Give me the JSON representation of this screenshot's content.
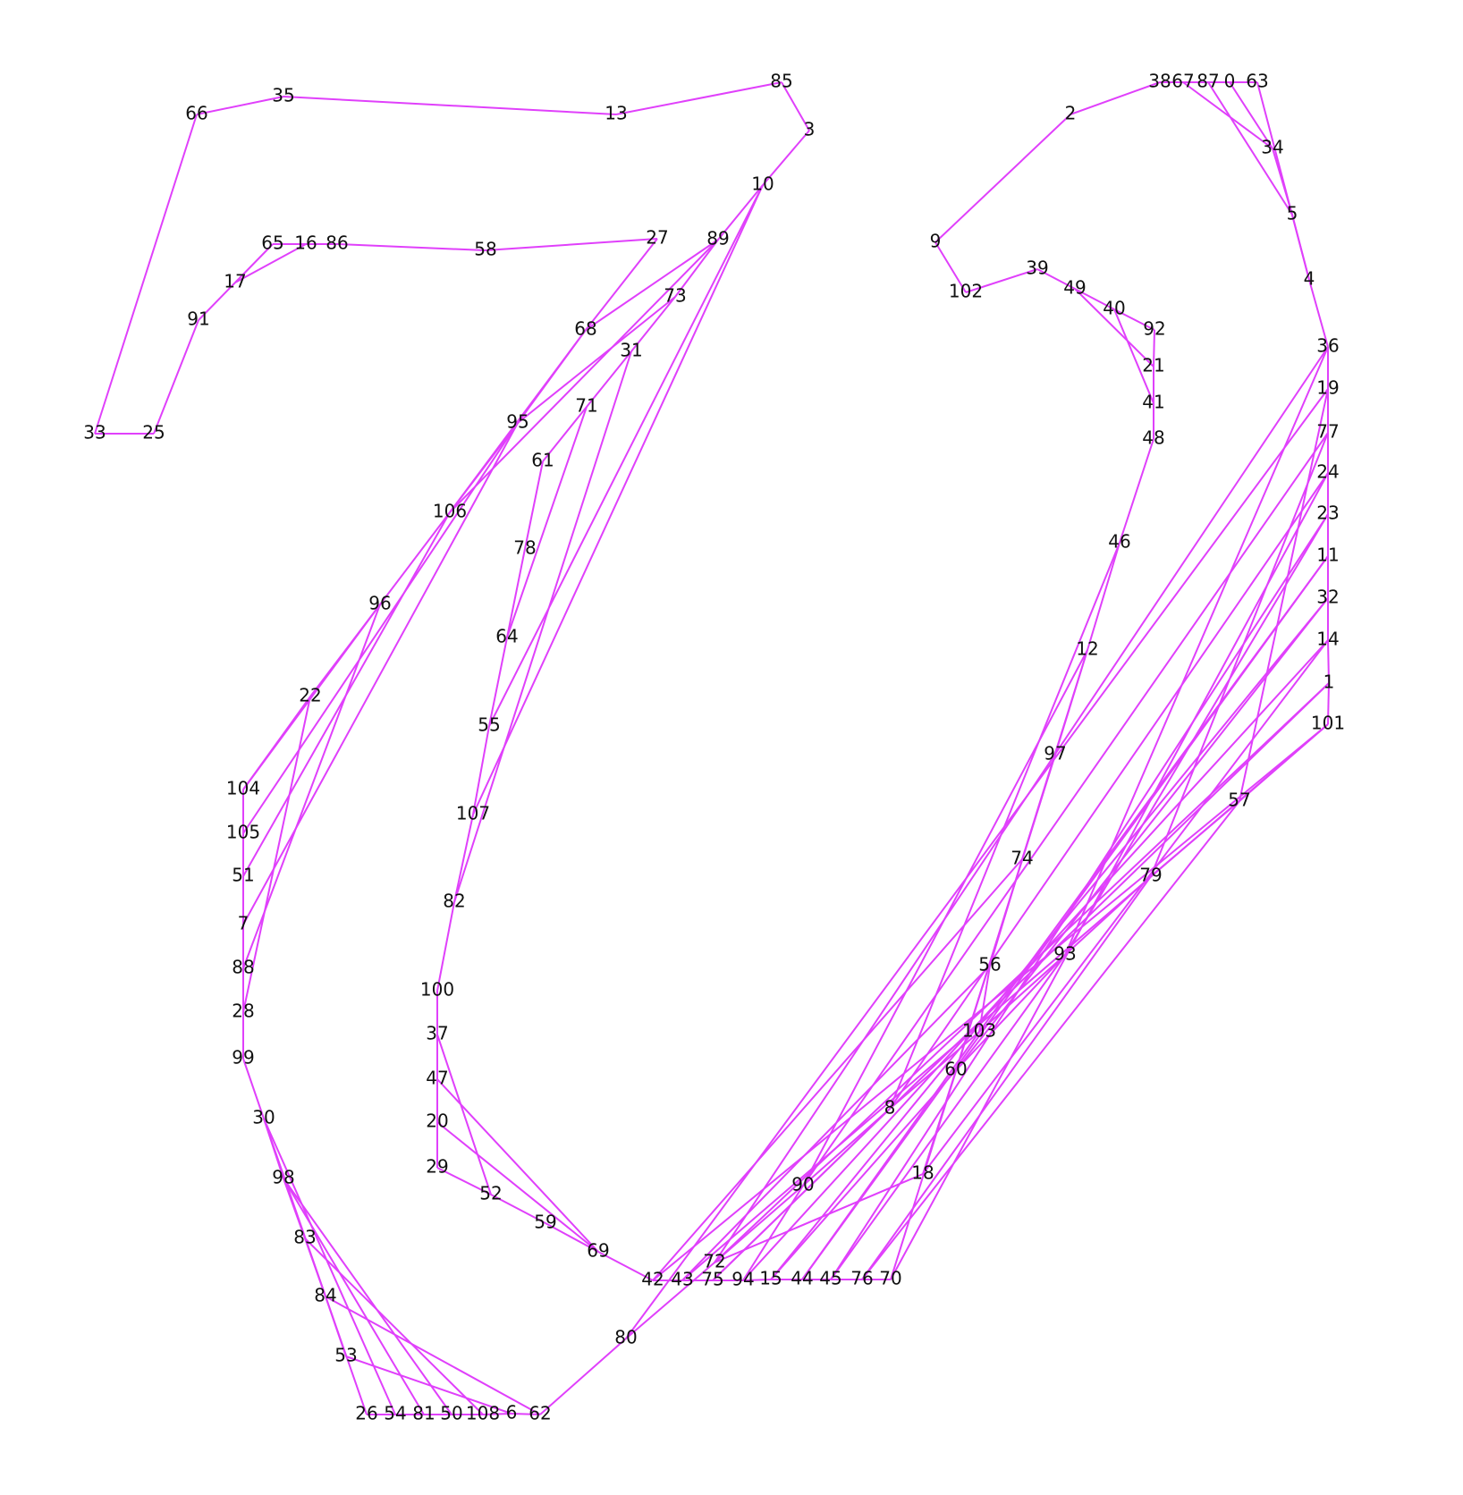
{
  "diagram": {
    "type": "graph",
    "edge_color": "#e040fb",
    "label_color": "#111111",
    "background": "#ffffff"
  },
  "nodes": [
    {
      "id": "0",
      "label": "0"
    },
    {
      "id": "1",
      "label": "1"
    },
    {
      "id": "2",
      "label": "2"
    },
    {
      "id": "3",
      "label": "3"
    },
    {
      "id": "4",
      "label": "4"
    },
    {
      "id": "5",
      "label": "5"
    },
    {
      "id": "6",
      "label": "6"
    },
    {
      "id": "7",
      "label": "7"
    },
    {
      "id": "8",
      "label": "8"
    },
    {
      "id": "9",
      "label": "9"
    },
    {
      "id": "10",
      "label": "10"
    },
    {
      "id": "11",
      "label": "11"
    },
    {
      "id": "12",
      "label": "12"
    },
    {
      "id": "13",
      "label": "13"
    },
    {
      "id": "14",
      "label": "14"
    },
    {
      "id": "15",
      "label": "15"
    },
    {
      "id": "16",
      "label": "16"
    },
    {
      "id": "17",
      "label": "17"
    },
    {
      "id": "18",
      "label": "18"
    },
    {
      "id": "19",
      "label": "19"
    },
    {
      "id": "20",
      "label": "20"
    },
    {
      "id": "21",
      "label": "21"
    },
    {
      "id": "22",
      "label": "22"
    },
    {
      "id": "23",
      "label": "23"
    },
    {
      "id": "24",
      "label": "24"
    },
    {
      "id": "25",
      "label": "25"
    },
    {
      "id": "26",
      "label": "26"
    },
    {
      "id": "27",
      "label": "27"
    },
    {
      "id": "28",
      "label": "28"
    },
    {
      "id": "29",
      "label": "29"
    },
    {
      "id": "30",
      "label": "30"
    },
    {
      "id": "31",
      "label": "31"
    },
    {
      "id": "32",
      "label": "32"
    },
    {
      "id": "33",
      "label": "33"
    },
    {
      "id": "34",
      "label": "34"
    },
    {
      "id": "35",
      "label": "35"
    },
    {
      "id": "36",
      "label": "36"
    },
    {
      "id": "37",
      "label": "37"
    },
    {
      "id": "38",
      "label": "38"
    },
    {
      "id": "39",
      "label": "39"
    },
    {
      "id": "40",
      "label": "40"
    },
    {
      "id": "41",
      "label": "41"
    },
    {
      "id": "42",
      "label": "42"
    },
    {
      "id": "43",
      "label": "43"
    },
    {
      "id": "44",
      "label": "44"
    },
    {
      "id": "45",
      "label": "45"
    },
    {
      "id": "46",
      "label": "46"
    },
    {
      "id": "47",
      "label": "47"
    },
    {
      "id": "48",
      "label": "48"
    },
    {
      "id": "49",
      "label": "49"
    },
    {
      "id": "50",
      "label": "50"
    },
    {
      "id": "51",
      "label": "51"
    },
    {
      "id": "52",
      "label": "52"
    },
    {
      "id": "53",
      "label": "53"
    },
    {
      "id": "54",
      "label": "54"
    },
    {
      "id": "55",
      "label": "55"
    },
    {
      "id": "56",
      "label": "56"
    },
    {
      "id": "57",
      "label": "57"
    },
    {
      "id": "58",
      "label": "58"
    },
    {
      "id": "59",
      "label": "59"
    },
    {
      "id": "60",
      "label": "60"
    },
    {
      "id": "61",
      "label": "61"
    },
    {
      "id": "62",
      "label": "62"
    },
    {
      "id": "63",
      "label": "63"
    },
    {
      "id": "64",
      "label": "64"
    },
    {
      "id": "65",
      "label": "65"
    },
    {
      "id": "66",
      "label": "66"
    },
    {
      "id": "67",
      "label": "67"
    },
    {
      "id": "68",
      "label": "68"
    },
    {
      "id": "69",
      "label": "69"
    },
    {
      "id": "70",
      "label": "70"
    },
    {
      "id": "71",
      "label": "71"
    },
    {
      "id": "72",
      "label": "72"
    },
    {
      "id": "73",
      "label": "73"
    },
    {
      "id": "74",
      "label": "74"
    },
    {
      "id": "75",
      "label": "75"
    },
    {
      "id": "76",
      "label": "76"
    },
    {
      "id": "77",
      "label": "77"
    },
    {
      "id": "78",
      "label": "78"
    },
    {
      "id": "79",
      "label": "79"
    },
    {
      "id": "80",
      "label": "80"
    },
    {
      "id": "81",
      "label": "81"
    },
    {
      "id": "82",
      "label": "82"
    },
    {
      "id": "83",
      "label": "83"
    },
    {
      "id": "84",
      "label": "84"
    },
    {
      "id": "85",
      "label": "85"
    },
    {
      "id": "86",
      "label": "86"
    },
    {
      "id": "87",
      "label": "87"
    },
    {
      "id": "88",
      "label": "88"
    },
    {
      "id": "89",
      "label": "89"
    },
    {
      "id": "90",
      "label": "90"
    },
    {
      "id": "91",
      "label": "91"
    },
    {
      "id": "92",
      "label": "92"
    },
    {
      "id": "93",
      "label": "93"
    },
    {
      "id": "94",
      "label": "94"
    },
    {
      "id": "95",
      "label": "95"
    },
    {
      "id": "96",
      "label": "96"
    },
    {
      "id": "97",
      "label": "97"
    },
    {
      "id": "98",
      "label": "98"
    },
    {
      "id": "99",
      "label": "99"
    },
    {
      "id": "100",
      "label": "100"
    },
    {
      "id": "101",
      "label": "101"
    },
    {
      "id": "102",
      "label": "102"
    },
    {
      "id": "103",
      "label": "103"
    },
    {
      "id": "104",
      "label": "104"
    },
    {
      "id": "105",
      "label": "105"
    },
    {
      "id": "106",
      "label": "106"
    },
    {
      "id": "107",
      "label": "107"
    },
    {
      "id": "108",
      "label": "108"
    }
  ],
  "edges": [
    [
      "33",
      "25"
    ],
    [
      "33",
      "66"
    ],
    [
      "66",
      "35"
    ],
    [
      "35",
      "13"
    ],
    [
      "13",
      "85"
    ],
    [
      "85",
      "3"
    ],
    [
      "3",
      "10"
    ],
    [
      "25",
      "91"
    ],
    [
      "91",
      "17"
    ],
    [
      "17",
      "65"
    ],
    [
      "17",
      "16"
    ],
    [
      "65",
      "16"
    ],
    [
      "16",
      "86"
    ],
    [
      "86",
      "58"
    ],
    [
      "58",
      "27"
    ],
    [
      "27",
      "68"
    ],
    [
      "68",
      "95"
    ],
    [
      "68",
      "106"
    ],
    [
      "95",
      "106"
    ],
    [
      "106",
      "96"
    ],
    [
      "96",
      "22"
    ],
    [
      "22",
      "104"
    ],
    [
      "104",
      "105"
    ],
    [
      "105",
      "51"
    ],
    [
      "51",
      "7"
    ],
    [
      "7",
      "88"
    ],
    [
      "88",
      "28"
    ],
    [
      "28",
      "99"
    ],
    [
      "99",
      "30"
    ],
    [
      "30",
      "98"
    ],
    [
      "98",
      "83"
    ],
    [
      "83",
      "84"
    ],
    [
      "84",
      "53"
    ],
    [
      "53",
      "6"
    ],
    [
      "30",
      "26"
    ],
    [
      "30",
      "54"
    ],
    [
      "98",
      "81"
    ],
    [
      "98",
      "50"
    ],
    [
      "83",
      "108"
    ],
    [
      "84",
      "62"
    ],
    [
      "26",
      "54"
    ],
    [
      "54",
      "81"
    ],
    [
      "81",
      "50"
    ],
    [
      "50",
      "108"
    ],
    [
      "108",
      "6"
    ],
    [
      "6",
      "62"
    ],
    [
      "62",
      "80"
    ],
    [
      "80",
      "72"
    ],
    [
      "72",
      "18"
    ],
    [
      "18",
      "60"
    ],
    [
      "60",
      "93"
    ],
    [
      "93",
      "23"
    ],
    [
      "10",
      "89"
    ],
    [
      "89",
      "73"
    ],
    [
      "73",
      "31"
    ],
    [
      "31",
      "71"
    ],
    [
      "71",
      "61"
    ],
    [
      "61",
      "78"
    ],
    [
      "78",
      "64"
    ],
    [
      "64",
      "55"
    ],
    [
      "55",
      "107"
    ],
    [
      "107",
      "82"
    ],
    [
      "82",
      "100"
    ],
    [
      "100",
      "37"
    ],
    [
      "37",
      "47"
    ],
    [
      "47",
      "20"
    ],
    [
      "20",
      "29"
    ],
    [
      "29",
      "52"
    ],
    [
      "52",
      "59"
    ],
    [
      "59",
      "69"
    ],
    [
      "69",
      "42"
    ],
    [
      "37",
      "52"
    ],
    [
      "47",
      "69"
    ],
    [
      "20",
      "69"
    ],
    [
      "42",
      "43"
    ],
    [
      "43",
      "75"
    ],
    [
      "75",
      "94"
    ],
    [
      "94",
      "15"
    ],
    [
      "15",
      "44"
    ],
    [
      "44",
      "45"
    ],
    [
      "45",
      "76"
    ],
    [
      "76",
      "70"
    ],
    [
      "70",
      "97"
    ],
    [
      "97",
      "12"
    ],
    [
      "12",
      "46"
    ],
    [
      "46",
      "48"
    ],
    [
      "48",
      "41"
    ],
    [
      "41",
      "21"
    ],
    [
      "21",
      "92"
    ],
    [
      "92",
      "40"
    ],
    [
      "40",
      "49"
    ],
    [
      "49",
      "39"
    ],
    [
      "39",
      "102"
    ],
    [
      "102",
      "9"
    ],
    [
      "9",
      "2"
    ],
    [
      "2",
      "38"
    ],
    [
      "38",
      "67"
    ],
    [
      "67",
      "87"
    ],
    [
      "87",
      "0"
    ],
    [
      "0",
      "63"
    ],
    [
      "63",
      "4"
    ],
    [
      "4",
      "36"
    ],
    [
      "36",
      "19"
    ],
    [
      "19",
      "77"
    ],
    [
      "77",
      "24"
    ],
    [
      "24",
      "23"
    ],
    [
      "23",
      "11"
    ],
    [
      "11",
      "32"
    ],
    [
      "32",
      "14"
    ],
    [
      "14",
      "1"
    ],
    [
      "1",
      "101"
    ],
    [
      "101",
      "57"
    ],
    [
      "57",
      "79"
    ],
    [
      "79",
      "93"
    ],
    [
      "93",
      "103"
    ],
    [
      "103",
      "8"
    ],
    [
      "8",
      "90"
    ],
    [
      "90",
      "72"
    ],
    [
      "67",
      "34"
    ],
    [
      "34",
      "5"
    ],
    [
      "5",
      "4"
    ],
    [
      "87",
      "5"
    ],
    [
      "0",
      "34"
    ],
    [
      "89",
      "68"
    ],
    [
      "89",
      "106"
    ],
    [
      "73",
      "95"
    ],
    [
      "10",
      "55"
    ],
    [
      "10",
      "107"
    ],
    [
      "31",
      "82"
    ],
    [
      "71",
      "64"
    ],
    [
      "106",
      "51"
    ],
    [
      "95",
      "7"
    ],
    [
      "96",
      "88"
    ],
    [
      "22",
      "28"
    ],
    [
      "104",
      "96"
    ],
    [
      "105",
      "95"
    ],
    [
      "49",
      "21"
    ],
    [
      "40",
      "41"
    ],
    [
      "12",
      "74"
    ],
    [
      "74",
      "56"
    ],
    [
      "56",
      "103"
    ],
    [
      "46",
      "8"
    ],
    [
      "97",
      "60"
    ],
    [
      "12",
      "90"
    ],
    [
      "74",
      "42"
    ],
    [
      "56",
      "43"
    ],
    [
      "8",
      "75"
    ],
    [
      "90",
      "94"
    ],
    [
      "60",
      "15"
    ],
    [
      "103",
      "44"
    ],
    [
      "93",
      "45"
    ],
    [
      "79",
      "76"
    ],
    [
      "36",
      "72"
    ],
    [
      "19",
      "80"
    ],
    [
      "77",
      "90"
    ],
    [
      "24",
      "8"
    ],
    [
      "11",
      "103"
    ],
    [
      "32",
      "60"
    ],
    [
      "14",
      "18"
    ],
    [
      "1",
      "72"
    ],
    [
      "101",
      "42"
    ],
    [
      "57",
      "76"
    ],
    [
      "19",
      "57"
    ],
    [
      "77",
      "79"
    ],
    [
      "36",
      "93"
    ],
    [
      "24",
      "70"
    ],
    [
      "23",
      "45"
    ],
    [
      "11",
      "44"
    ],
    [
      "32",
      "15"
    ],
    [
      "14",
      "94"
    ],
    [
      "1",
      "75"
    ],
    [
      "101",
      "43"
    ]
  ]
}
